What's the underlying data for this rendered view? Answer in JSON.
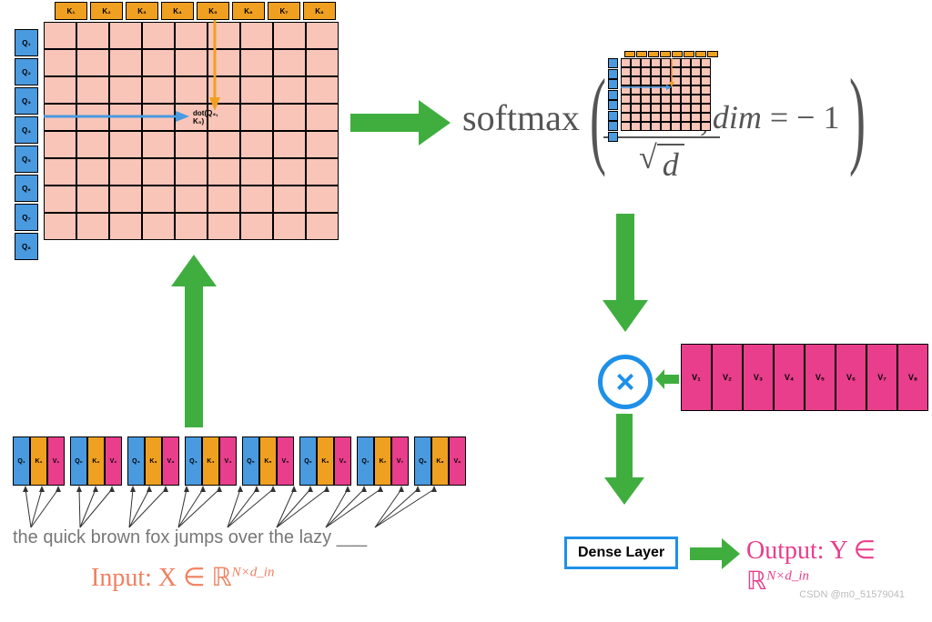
{
  "colors": {
    "q": "#4a9ae0",
    "k": "#f0a020",
    "v": "#e83e8c",
    "grid_bg": "#f9c5b8",
    "arrow": "#3fae3f",
    "circle": "#1e90e8",
    "formula": "#555555",
    "input_text": "#f08060",
    "output_text": "#e83e8c"
  },
  "grid": {
    "k_labels": [
      "K₁",
      "K₂",
      "K₃",
      "K₄",
      "K₅",
      "K₆",
      "K₇",
      "K₈"
    ],
    "q_labels": [
      "Q₁",
      "Q₂",
      "Q₃",
      "Q₄",
      "Q₅",
      "Q₆",
      "Q₇",
      "Q₈"
    ],
    "cols": 9,
    "rows": 8,
    "dot_label_line1": "dot(Q₄,",
    "dot_label_line2": "K₅)"
  },
  "softmax": {
    "fn": "softmax",
    "denom_sym": "√",
    "denom_var": "d",
    "comma": ",",
    "dim_label": "dim",
    "eq": " = − 1"
  },
  "tokens": {
    "sentence": "the quick brown fox jumps over the lazy ___",
    "items": [
      {
        "q": "Q₁",
        "k": "K₁",
        "v": "V₁"
      },
      {
        "q": "Q₂",
        "k": "K₂",
        "v": "V₂"
      },
      {
        "q": "Q₃",
        "k": "K₃",
        "v": "V₃"
      },
      {
        "q": "Q₄",
        "k": "K₄",
        "v": "V₄"
      },
      {
        "q": "Q₅",
        "k": "K₅",
        "v": "V₅"
      },
      {
        "q": "Q₆",
        "k": "K₆",
        "v": "V₆"
      },
      {
        "q": "Q₇",
        "k": "K₇",
        "v": "V₇"
      },
      {
        "q": "Q₈",
        "k": "K₈",
        "v": "V₈"
      }
    ]
  },
  "v_strip": [
    "V₁",
    "V₂",
    "V₃",
    "V₄",
    "V₅",
    "V₆",
    "V₇",
    "V₈"
  ],
  "input_label": "Input: X ∈ ℝ",
  "input_exp": "N×d_in",
  "dense": "Dense Layer",
  "output_label": "Output: Y ∈ ℝ",
  "output_exp": "N×d_in",
  "mult": "×",
  "watermark": "CSDN @m0_51579041"
}
